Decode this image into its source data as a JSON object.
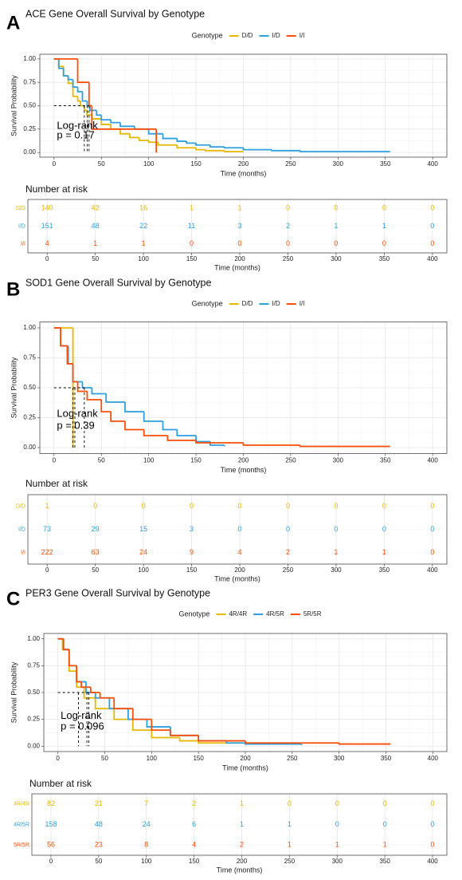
{
  "chart_data": [
    {
      "type": "step",
      "panel_label": "A",
      "title": "ACE Gene Overall Survival by Genotype",
      "legend_title": "Genotype",
      "xlabel": "Time (months)",
      "ylabel": "Survival Probability",
      "annotation": [
        "Log-rank",
        "p = 0.17"
      ],
      "xlim": [
        -15,
        415
      ],
      "ylim": [
        -0.05,
        1.05
      ],
      "xticks": [
        0,
        50,
        100,
        150,
        200,
        250,
        300,
        350,
        400
      ],
      "yticks": [
        {
          "value": 0,
          "label": "0.00"
        },
        {
          "value": 0.25,
          "label": "0.25"
        },
        {
          "value": 0.5,
          "label": "0.50"
        },
        {
          "value": 0.75,
          "label": "0.75"
        },
        {
          "value": 1,
          "label": "1.00"
        }
      ],
      "grid": true,
      "series": [
        {
          "name": "D/D",
          "color": "#E7B800",
          "median": 32,
          "x": [
            0,
            5,
            10,
            15,
            20,
            25,
            28,
            32,
            35,
            40,
            50,
            60,
            70,
            80,
            90,
            100,
            110,
            130,
            150,
            160,
            180,
            200
          ],
          "values": [
            1,
            0.92,
            0.82,
            0.74,
            0.6,
            0.55,
            0.5,
            0.45,
            0.4,
            0.36,
            0.3,
            0.25,
            0.2,
            0.16,
            0.13,
            0.11,
            0.08,
            0.05,
            0.03,
            0.02,
            0.01,
            0.01
          ]
        },
        {
          "name": "I/D",
          "color": "#2E9FDF",
          "median": 35,
          "x": [
            0,
            5,
            10,
            15,
            20,
            25,
            30,
            35,
            38,
            45,
            50,
            60,
            70,
            85,
            100,
            115,
            130,
            140,
            150,
            165,
            180,
            200,
            230,
            260,
            355
          ],
          "values": [
            1,
            0.9,
            0.82,
            0.78,
            0.7,
            0.65,
            0.55,
            0.5,
            0.45,
            0.4,
            0.35,
            0.32,
            0.28,
            0.25,
            0.2,
            0.15,
            0.12,
            0.1,
            0.08,
            0.06,
            0.05,
            0.03,
            0.02,
            0.01,
            0.01
          ]
        },
        {
          "name": "I/I",
          "color": "#FC4E07",
          "median": 37,
          "x": [
            0,
            25,
            37,
            40,
            108
          ],
          "values": [
            1,
            0.75,
            0.5,
            0.25,
            0
          ]
        }
      ]
    },
    {
      "type": "risk_table",
      "title": "Number at risk",
      "xlabel": "Time (months)",
      "xlim": [
        -20,
        415
      ],
      "xticks": [
        0,
        50,
        100,
        150,
        200,
        250,
        300,
        350,
        400
      ],
      "x": [
        0,
        50,
        100,
        150,
        200,
        250,
        300,
        350,
        400
      ],
      "series": [
        {
          "name": "D/D",
          "color": "#E7B800",
          "values": [
            140,
            42,
            16,
            1,
            1,
            0,
            0,
            0,
            0
          ]
        },
        {
          "name": "I/D",
          "color": "#2E9FDF",
          "values": [
            151,
            48,
            22,
            11,
            3,
            2,
            1,
            1,
            0
          ]
        },
        {
          "name": "I/I",
          "color": "#FC4E07",
          "values": [
            4,
            1,
            1,
            0,
            0,
            0,
            0,
            0,
            0
          ]
        }
      ]
    },
    {
      "type": "step",
      "panel_label": "B",
      "title": "SOD1 Gene Overall Survival by Genotype",
      "legend_title": "Genotype",
      "xlabel": "Time (months)",
      "ylabel": "Survival Probability",
      "annotation": [
        "Log-rank",
        "p = 0.39"
      ],
      "xlim": [
        -15,
        415
      ],
      "ylim": [
        -0.05,
        1.05
      ],
      "xticks": [
        0,
        50,
        100,
        150,
        200,
        250,
        300,
        350,
        400
      ],
      "yticks": [
        {
          "value": 0,
          "label": "0.00"
        },
        {
          "value": 0.25,
          "label": "0.25"
        },
        {
          "value": 0.5,
          "label": "0.50"
        },
        {
          "value": 0.75,
          "label": "0.75"
        },
        {
          "value": 1,
          "label": "1.00"
        }
      ],
      "grid": true,
      "series": [
        {
          "name": "D/D",
          "color": "#E7B800",
          "median": 20,
          "x": [
            0,
            20
          ],
          "values": [
            1,
            0
          ]
        },
        {
          "name": "I/D",
          "color": "#2E9FDF",
          "median": 32,
          "x": [
            0,
            7,
            15,
            20,
            30,
            40,
            55,
            75,
            95,
            115,
            130,
            150,
            165,
            180
          ],
          "values": [
            1,
            0.85,
            0.7,
            0.55,
            0.5,
            0.45,
            0.38,
            0.3,
            0.22,
            0.15,
            0.1,
            0.05,
            0.02,
            0.01
          ]
        },
        {
          "name": "I/I",
          "color": "#FC4E07",
          "median": 22,
          "x": [
            0,
            7,
            14,
            20,
            25,
            35,
            50,
            60,
            75,
            95,
            120,
            150,
            200,
            260,
            355
          ],
          "values": [
            1,
            0.85,
            0.7,
            0.55,
            0.47,
            0.4,
            0.3,
            0.22,
            0.15,
            0.1,
            0.06,
            0.04,
            0.02,
            0.01,
            0.01
          ]
        }
      ]
    },
    {
      "type": "risk_table",
      "title": "Number at risk",
      "xlabel": "Time (months)",
      "xlim": [
        -20,
        415
      ],
      "xticks": [
        0,
        50,
        100,
        150,
        200,
        250,
        300,
        350,
        400
      ],
      "x": [
        0,
        50,
        100,
        150,
        200,
        250,
        300,
        350,
        400
      ],
      "series": [
        {
          "name": "D/D",
          "color": "#E7B800",
          "values": [
            1,
            0,
            0,
            0,
            0,
            0,
            0,
            0,
            0
          ]
        },
        {
          "name": "I/D",
          "color": "#2E9FDF",
          "values": [
            73,
            29,
            15,
            3,
            0,
            0,
            0,
            0,
            0
          ]
        },
        {
          "name": "I/I",
          "color": "#FC4E07",
          "values": [
            222,
            63,
            24,
            9,
            4,
            2,
            1,
            1,
            0
          ]
        }
      ]
    },
    {
      "type": "step",
      "panel_label": "C",
      "title": "PER3 Gene Overall Survival by Genotype",
      "legend_title": "Genotype",
      "xlabel": "Time (months)",
      "ylabel": "Survival Probability",
      "annotation": [
        "Log-rank",
        "p = 0.096"
      ],
      "xlim": [
        -15,
        415
      ],
      "ylim": [
        -0.05,
        1.05
      ],
      "xticks": [
        0,
        50,
        100,
        150,
        200,
        250,
        300,
        350,
        400
      ],
      "yticks": [
        {
          "value": 0,
          "label": "0.00"
        },
        {
          "value": 0.25,
          "label": "0.25"
        },
        {
          "value": 0.5,
          "label": "0.50"
        },
        {
          "value": 0.75,
          "label": "0.75"
        },
        {
          "value": 1,
          "label": "1.00"
        }
      ],
      "grid": true,
      "series": [
        {
          "name": "4R/4R",
          "color": "#E7B800",
          "median": 22,
          "x": [
            0,
            5,
            12,
            20,
            28,
            40,
            60,
            80,
            100,
            130,
            150,
            200
          ],
          "values": [
            1,
            0.9,
            0.7,
            0.55,
            0.45,
            0.35,
            0.25,
            0.15,
            0.08,
            0.05,
            0.03,
            0.02
          ]
        },
        {
          "name": "4R/5R",
          "color": "#2E9FDF",
          "median": 31,
          "x": [
            0,
            6,
            12,
            20,
            30,
            40,
            55,
            75,
            95,
            120,
            150,
            180,
            200,
            260
          ],
          "values": [
            1,
            0.9,
            0.75,
            0.6,
            0.5,
            0.45,
            0.35,
            0.25,
            0.18,
            0.1,
            0.05,
            0.03,
            0.02,
            0.01
          ]
        },
        {
          "name": "5R/5R",
          "color": "#FC4E07",
          "median": 33,
          "x": [
            0,
            6,
            12,
            20,
            25,
            35,
            45,
            60,
            80,
            100,
            120,
            150,
            200,
            300,
            355
          ],
          "values": [
            1,
            0.9,
            0.75,
            0.6,
            0.55,
            0.5,
            0.45,
            0.35,
            0.25,
            0.15,
            0.1,
            0.05,
            0.03,
            0.02,
            0.02
          ]
        }
      ]
    },
    {
      "type": "risk_table",
      "title": "Number at risk",
      "xlabel": "Time (months)",
      "xlim": [
        -20,
        415
      ],
      "xticks": [
        0,
        50,
        100,
        150,
        200,
        250,
        300,
        350,
        400
      ],
      "x": [
        0,
        50,
        100,
        150,
        200,
        250,
        300,
        350,
        400
      ],
      "series": [
        {
          "name": "4R/4R",
          "color": "#E7B800",
          "values": [
            82,
            21,
            7,
            2,
            1,
            0,
            0,
            0,
            0
          ]
        },
        {
          "name": "4R/5R",
          "color": "#2E9FDF",
          "values": [
            158,
            48,
            24,
            6,
            1,
            1,
            0,
            0,
            0
          ]
        },
        {
          "name": "5R/5R",
          "color": "#FC4E07",
          "values": [
            56,
            23,
            8,
            4,
            2,
            1,
            1,
            1,
            0
          ]
        }
      ]
    }
  ]
}
